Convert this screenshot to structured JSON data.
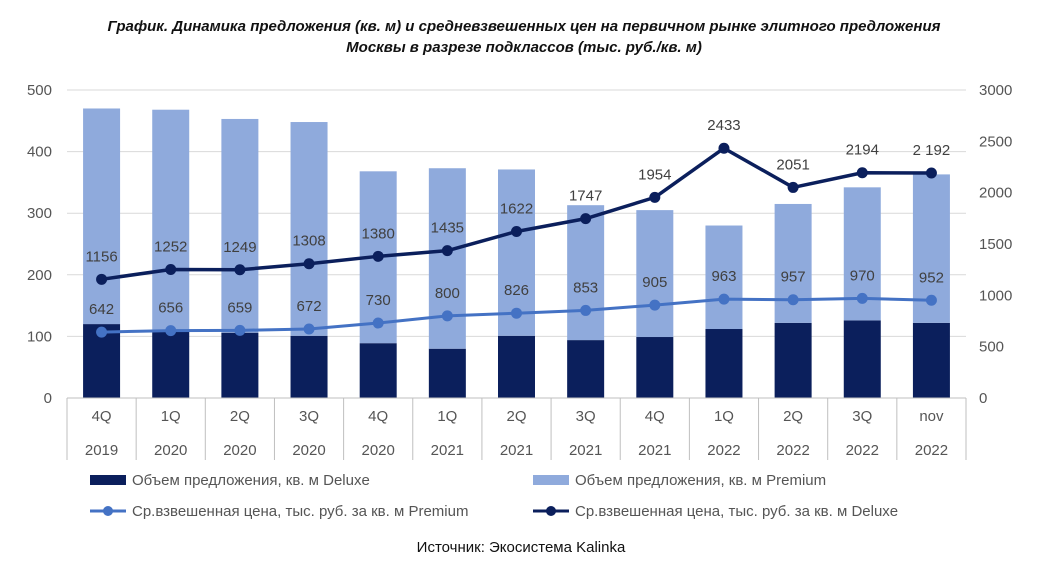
{
  "chart_data": {
    "type": "bar+line",
    "title_line1": "График. Динамика предложения (кв. м) и средневзвешенных цен на первичном рынке элитного предложения",
    "title_line2": "Москвы в разрезе подклассов (тыс. руб./кв. м)",
    "categories": [
      {
        "q": "4Q",
        "y": "2019"
      },
      {
        "q": "1Q",
        "y": "2020"
      },
      {
        "q": "2Q",
        "y": "2020"
      },
      {
        "q": "3Q",
        "y": "2020"
      },
      {
        "q": "4Q",
        "y": "2020"
      },
      {
        "q": "1Q",
        "y": "2021"
      },
      {
        "q": "2Q",
        "y": "2021"
      },
      {
        "q": "3Q",
        "y": "2021"
      },
      {
        "q": "4Q",
        "y": "2021"
      },
      {
        "q": "1Q",
        "y": "2022"
      },
      {
        "q": "2Q",
        "y": "2022"
      },
      {
        "q": "3Q",
        "y": "2022"
      },
      {
        "q": "nov",
        "y": "2022"
      }
    ],
    "y_left": {
      "min": 0,
      "max": 500,
      "step": 100,
      "ticks": [
        "0",
        "100",
        "200",
        "300",
        "400",
        "500"
      ]
    },
    "y_right": {
      "min": 0,
      "max": 3000,
      "step": 500,
      "ticks": [
        "0",
        "500",
        "1000",
        "1500",
        "2000",
        "2500",
        "3000"
      ]
    },
    "bar_series": [
      {
        "name": "Объем предложения, кв. м Deluxe",
        "color": "#0b1f5c",
        "values": [
          120,
          108,
          106,
          101,
          89,
          80,
          101,
          94,
          99,
          112,
          122,
          126,
          122
        ]
      },
      {
        "name": "Объем предложения, кв. м Premium",
        "color": "#8faadc",
        "values": [
          350,
          360,
          347,
          347,
          279,
          293,
          270,
          219,
          206,
          168,
          193,
          216,
          241
        ]
      }
    ],
    "line_series": [
      {
        "name": "Ср.взвешенная цена, тыс. руб. за кв. м  Premium",
        "color": "#4472c4",
        "values": [
          642,
          656,
          659,
          672,
          730,
          800,
          826,
          853,
          905,
          963,
          957,
          970,
          952
        ],
        "labels": [
          "642",
          "656",
          "659",
          "672",
          "730",
          "800",
          "826",
          "853",
          "905",
          "963",
          "957",
          "970",
          "952"
        ]
      },
      {
        "name": "Ср.взвешенная цена, тыс. руб. за кв. м  Deluxe",
        "color": "#0b1f5c",
        "values": [
          1156,
          1252,
          1249,
          1308,
          1380,
          1435,
          1622,
          1747,
          1954,
          2433,
          2051,
          2194,
          2192
        ],
        "labels": [
          "1156",
          "1252",
          "1249",
          "1308",
          "1380",
          "1435",
          "1622",
          "1747",
          "1954",
          "2433",
          "2051",
          "2194",
          "2 192"
        ]
      }
    ],
    "legend_position": "bottom",
    "gridlines": true,
    "source": "Источник: Экосистема Kalinka"
  }
}
